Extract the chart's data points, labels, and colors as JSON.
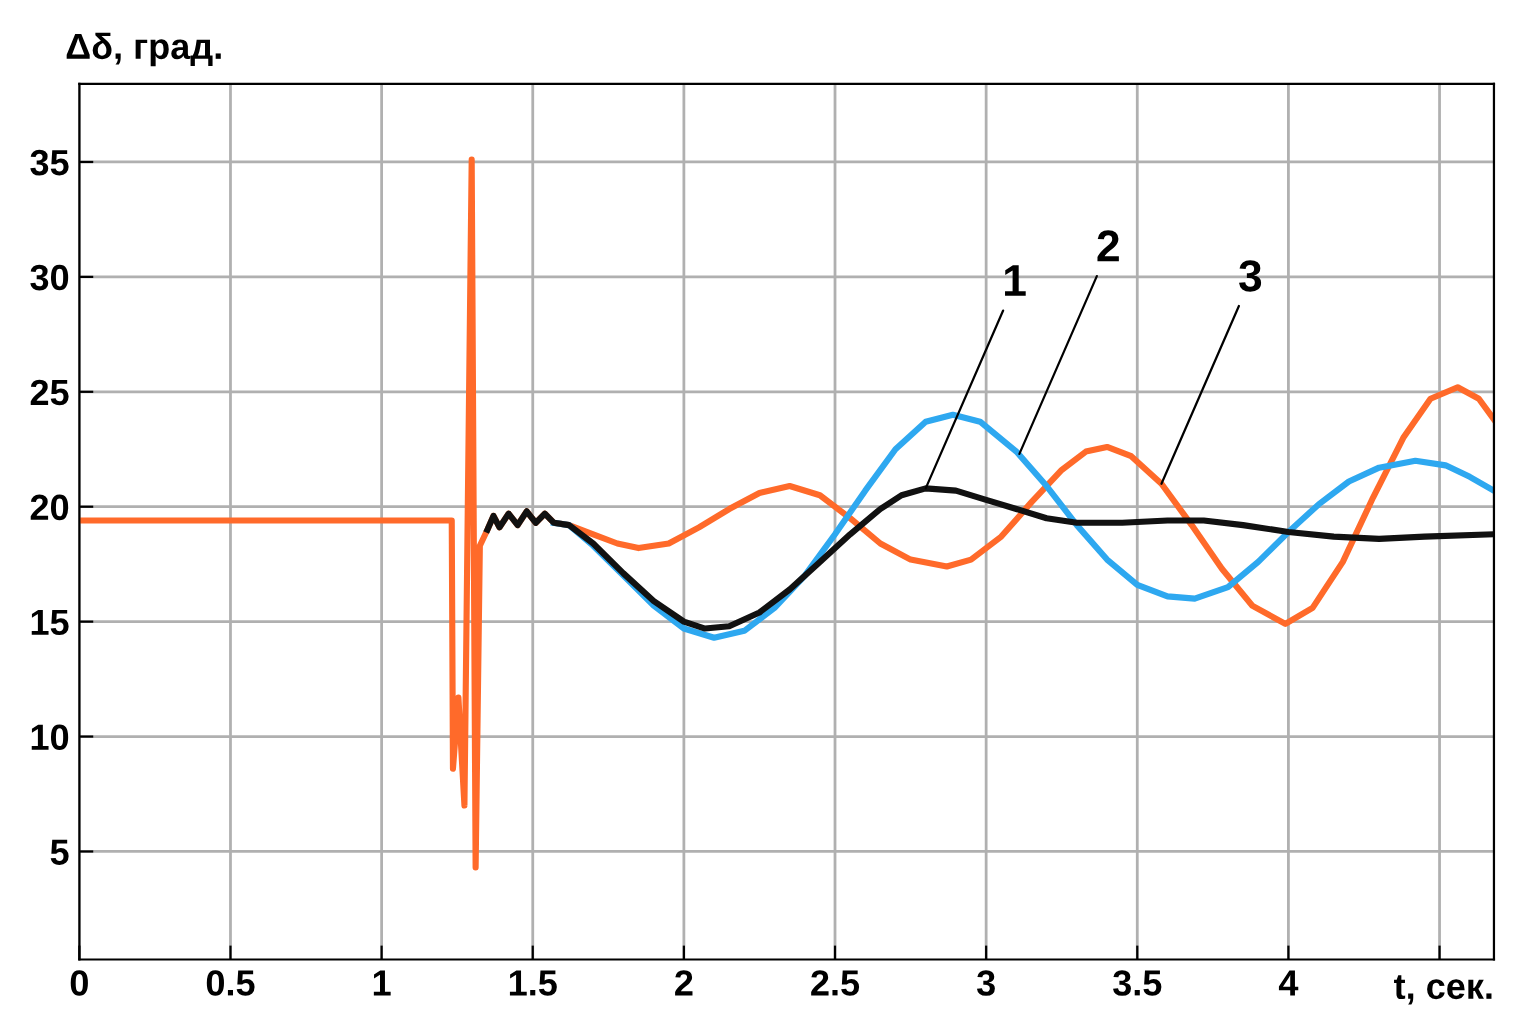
{
  "chart_data": {
    "type": "line",
    "xlabel": "t, сек.",
    "ylabel": "Δδ, град.",
    "xlim": [
      0,
      4.68
    ],
    "ylim": [
      0.3,
      38.4
    ],
    "xticks": [
      0,
      0.5,
      1,
      1.5,
      2,
      2.5,
      3,
      3.5,
      4,
      {
        "value": 4.5,
        "label": null
      }
    ],
    "yticks": [
      5,
      10,
      15,
      20,
      25,
      30,
      35
    ],
    "grid": true,
    "legend": false,
    "line_style": "solid",
    "marker": "none",
    "series": [
      {
        "color": "#ff6a2a",
        "x": [
          0,
          1.232,
          1.236,
          1.254,
          1.274,
          1.298,
          1.311,
          1.325,
          1.35,
          1.37,
          1.39,
          1.42,
          1.45,
          1.48,
          1.51,
          1.54,
          1.57,
          1.62,
          1.7,
          1.78,
          1.85,
          1.95,
          2.05,
          2.15,
          2.25,
          2.35,
          2.45,
          2.55,
          2.65,
          2.75,
          2.87,
          2.95,
          3.05,
          3.15,
          3.25,
          3.33,
          3.4,
          3.48,
          3.58,
          3.68,
          3.78,
          3.88,
          3.99,
          4.08,
          4.18,
          4.28,
          4.38,
          4.47,
          4.56,
          4.63,
          4.68
        ],
        "values": [
          19.4,
          19.4,
          8.6,
          11.7,
          7.0,
          35.1,
          4.3,
          18.3,
          19.0,
          19.6,
          19.1,
          19.7,
          19.2,
          19.8,
          19.3,
          19.7,
          19.3,
          19.2,
          18.8,
          18.4,
          18.2,
          18.4,
          19.1,
          19.9,
          20.6,
          20.9,
          20.5,
          19.5,
          18.4,
          17.7,
          17.4,
          17.7,
          18.7,
          20.2,
          21.6,
          22.4,
          22.6,
          22.2,
          21.0,
          19.2,
          17.3,
          15.7,
          14.9,
          15.6,
          17.6,
          20.4,
          23.0,
          24.7,
          25.2,
          24.7,
          23.8
        ]
      },
      {
        "color": "#2ea8f0",
        "x": [
          1.57,
          1.62,
          1.7,
          1.8,
          1.9,
          2.0,
          2.1,
          2.2,
          2.3,
          2.4,
          2.5,
          2.6,
          2.7,
          2.8,
          2.89,
          2.98,
          3.1,
          3.2,
          3.3,
          3.4,
          3.5,
          3.6,
          3.69,
          3.8,
          3.9,
          4.0,
          4.1,
          4.2,
          4.3,
          4.42,
          4.52,
          4.6,
          4.68
        ],
        "values": [
          19.3,
          19.2,
          18.3,
          17.0,
          15.7,
          14.7,
          14.3,
          14.6,
          15.6,
          17.0,
          18.8,
          20.7,
          22.5,
          23.7,
          24.0,
          23.7,
          22.4,
          20.9,
          19.2,
          17.7,
          16.6,
          16.1,
          16.0,
          16.5,
          17.6,
          18.9,
          20.1,
          21.1,
          21.7,
          22.0,
          21.8,
          21.3,
          20.7
        ]
      },
      {
        "color": "#111111",
        "x": [
          1.35,
          1.37,
          1.39,
          1.42,
          1.45,
          1.48,
          1.51,
          1.54,
          1.57,
          1.62,
          1.7,
          1.8,
          1.9,
          2.0,
          2.07,
          2.15,
          2.25,
          2.35,
          2.45,
          2.55,
          2.65,
          2.72,
          2.8,
          2.9,
          3.0,
          3.1,
          3.2,
          3.3,
          3.45,
          3.6,
          3.72,
          3.85,
          4.0,
          4.15,
          4.3,
          4.45,
          4.68
        ],
        "values": [
          19.0,
          19.6,
          19.1,
          19.7,
          19.2,
          19.8,
          19.3,
          19.7,
          19.3,
          19.2,
          18.4,
          17.1,
          15.9,
          15.0,
          14.7,
          14.8,
          15.4,
          16.4,
          17.6,
          18.8,
          19.9,
          20.5,
          20.8,
          20.7,
          20.3,
          19.9,
          19.5,
          19.3,
          19.3,
          19.4,
          19.4,
          19.2,
          18.9,
          18.7,
          18.6,
          18.7,
          18.8
        ]
      }
    ],
    "annotations": [
      {
        "text": "1",
        "x": 2.8,
        "y": 20.8
      },
      {
        "text": "2",
        "x": 3.11,
        "y": 22.3
      },
      {
        "text": "3",
        "x": 3.58,
        "y": 21.0
      }
    ]
  }
}
